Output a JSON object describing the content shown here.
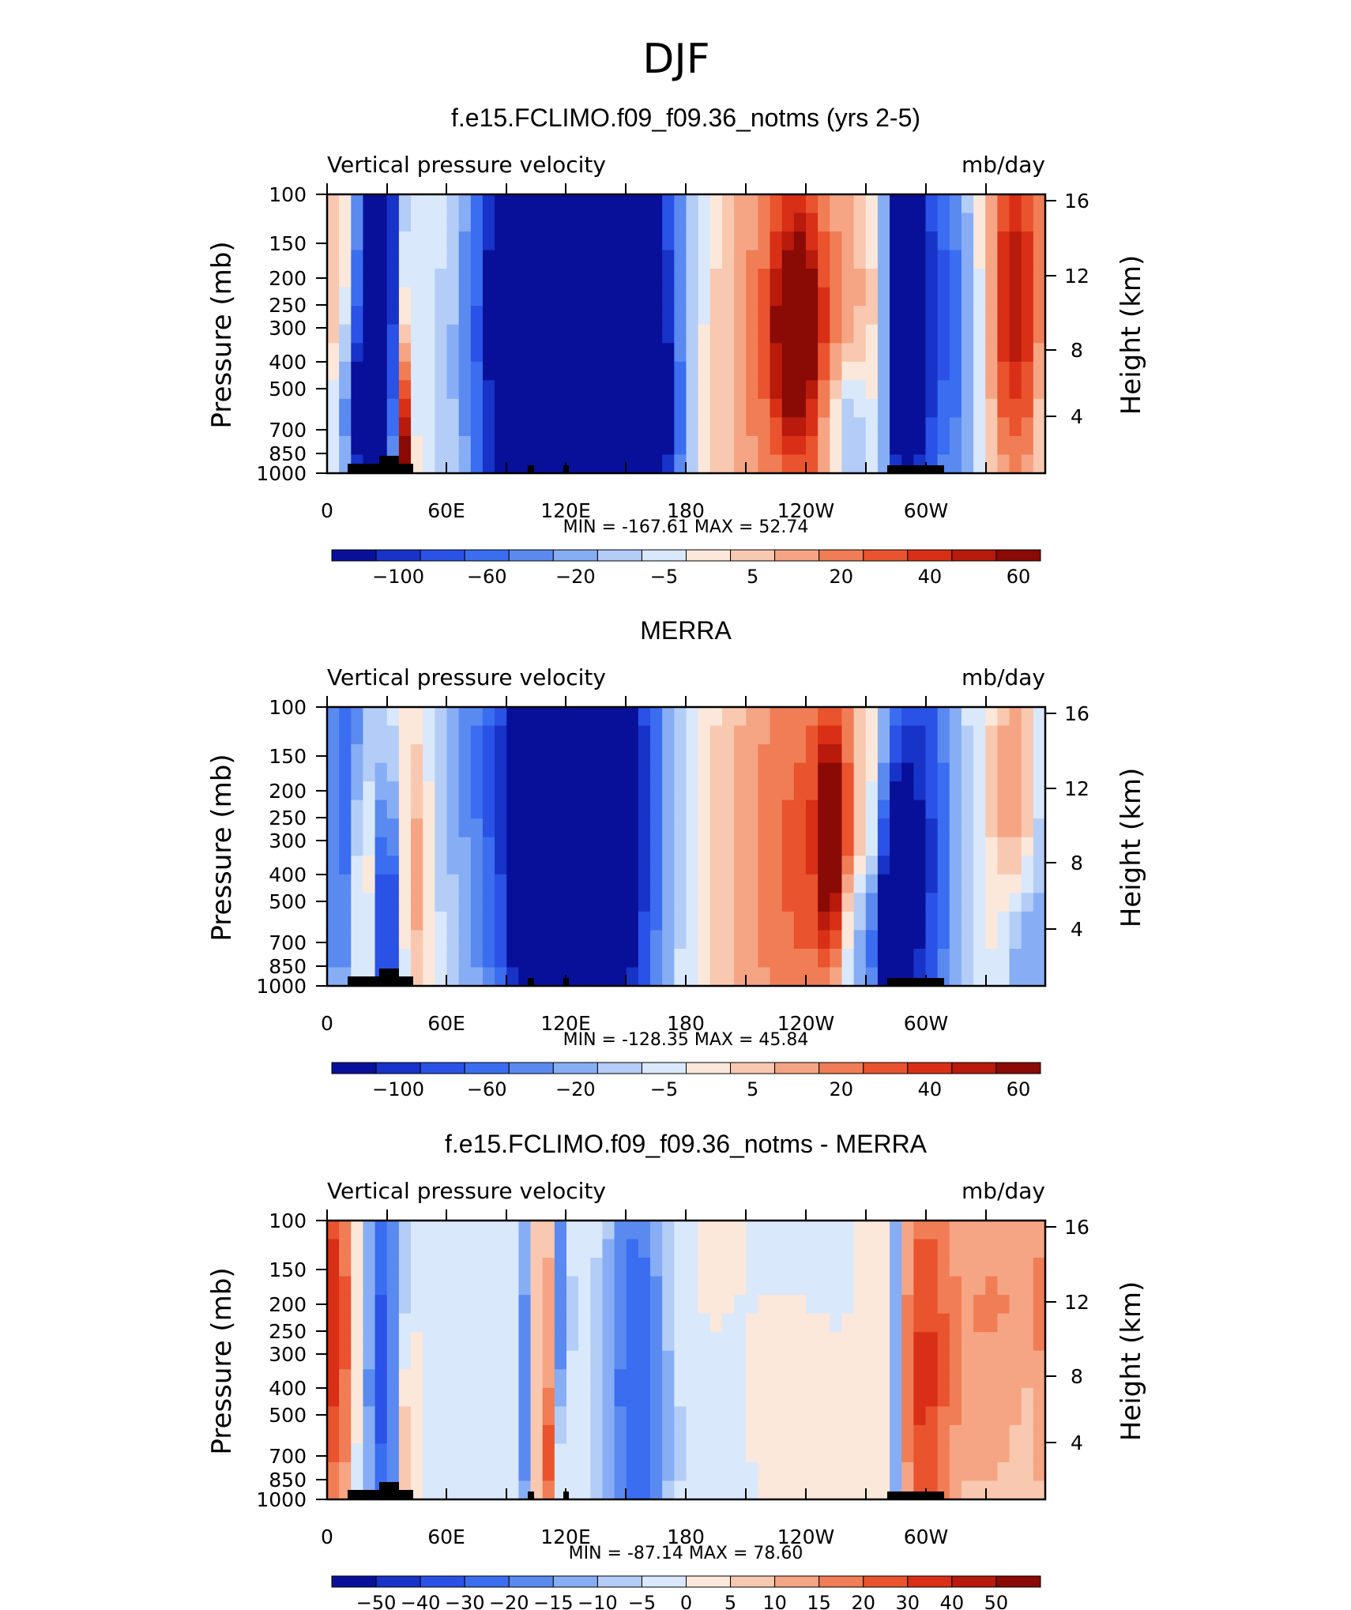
{
  "figure_title": "DJF",
  "chart_data": [
    {
      "type": "heatmap",
      "title": "f.e15.FCLIMO.f09_f09.36_notms (yrs 2-5)",
      "left_label": "Vertical pressure velocity",
      "units": "mb/day",
      "ylabel": "Pressure (mb)",
      "y2label": "Height (km)",
      "x_ticks": [
        "0",
        "60E",
        "120E",
        "180",
        "120W",
        "60W"
      ],
      "y_ticks": [
        "100",
        "150",
        "200",
        "250",
        "300",
        "400",
        "500",
        "700",
        "850",
        "1000"
      ],
      "y2_ticks": [
        "16",
        "12",
        "8",
        "4"
      ],
      "stats": "MIN = -167.61 MAX = 52.74",
      "min": -167.61,
      "max": 52.74,
      "colorbar_labels": [
        "-100",
        "-60",
        "-20",
        "-5",
        "5",
        "20",
        "40",
        "60"
      ],
      "colorbar_colors": [
        "#08109a",
        "#1733c8",
        "#2a52e6",
        "#3a6df0",
        "#5a8af0",
        "#87aef4",
        "#b3cdf7",
        "#dae8fb",
        "#fbe8da",
        "#f9c8b0",
        "#f5a583",
        "#f07d55",
        "#e9532e",
        "#d82f16",
        "#b81a0c",
        "#8a0a06"
      ],
      "features": [
        {
          "lon": 20,
          "lev": 8,
          "w": 5,
          "h": 11,
          "v": -45
        },
        {
          "lon": 29,
          "lev": 9,
          "w": 6,
          "h": 14,
          "v": -60
        },
        {
          "lon": 15,
          "lev": 3,
          "w": 9,
          "h": 3,
          "v": -25
        },
        {
          "lon": 37,
          "lev": 6,
          "w": 3,
          "h": 5,
          "v": 25
        },
        {
          "lon": 38,
          "lev": 1,
          "w": 3,
          "h": 3,
          "v": 55
        },
        {
          "lon": 108,
          "lev": 8,
          "w": 22,
          "h": 15,
          "v": -80
        },
        {
          "lon": 140,
          "lev": 9,
          "w": 20,
          "h": 14,
          "v": -110
        },
        {
          "lon": 122,
          "lev": 12,
          "w": 38,
          "h": 11,
          "v": -20
        },
        {
          "lon": 160,
          "lev": 2,
          "w": 12,
          "h": 4,
          "v": -25
        },
        {
          "lon": 235,
          "lev": 7,
          "w": 32,
          "h": 12,
          "v": 28
        },
        {
          "lon": 235,
          "lev": 8,
          "w": 8,
          "h": 4,
          "v": 45
        },
        {
          "lon": 262,
          "lev": 2,
          "w": 8,
          "h": 3,
          "v": -30
        },
        {
          "lon": 285,
          "lev": 7,
          "w": 5,
          "h": 13,
          "v": -50
        },
        {
          "lon": 296,
          "lev": 7,
          "w": 6,
          "h": 13,
          "v": -45
        },
        {
          "lon": 312,
          "lev": 7,
          "w": 10,
          "h": 9,
          "v": -30
        },
        {
          "lon": 308,
          "lev": 12,
          "w": 25,
          "h": 5,
          "v": -10
        },
        {
          "lon": 345,
          "lev": 8,
          "w": 10,
          "h": 7,
          "v": 40
        },
        {
          "lon": 340,
          "lev": 14,
          "w": 22,
          "h": 5,
          "v": 12
        },
        {
          "lon": 60,
          "lev": 14,
          "w": 25,
          "h": 6,
          "v": 4
        }
      ]
    },
    {
      "type": "heatmap",
      "title": "MERRA",
      "left_label": "Vertical pressure velocity",
      "units": "mb/day",
      "ylabel": "Pressure (mb)",
      "y2label": "Height (km)",
      "x_ticks": [
        "0",
        "60E",
        "120E",
        "180",
        "120W",
        "60W"
      ],
      "y_ticks": [
        "100",
        "150",
        "200",
        "250",
        "300",
        "400",
        "500",
        "700",
        "850",
        "1000"
      ],
      "y2_ticks": [
        "16",
        "12",
        "8",
        "4"
      ],
      "stats": "MIN = -128.35 MAX = 45.84",
      "min": -128.35,
      "max": 45.84,
      "colorbar_labels": [
        "-100",
        "-60",
        "-20",
        "-5",
        "5",
        "20",
        "40",
        "60"
      ],
      "colorbar_colors": [
        "#08109a",
        "#1733c8",
        "#2a52e6",
        "#3a6df0",
        "#5a8af0",
        "#87aef4",
        "#b3cdf7",
        "#dae8fb",
        "#fbe8da",
        "#f9c8b0",
        "#f5a583",
        "#f07d55",
        "#e9532e",
        "#d82f16",
        "#b81a0c",
        "#8a0a06"
      ],
      "features": [
        {
          "lon": 10,
          "lev": 10,
          "w": 9,
          "h": 10,
          "v": -30
        },
        {
          "lon": 18,
          "lev": 6,
          "w": 5,
          "h": 5,
          "v": 25
        },
        {
          "lon": 30,
          "lev": 3,
          "w": 5,
          "h": 5,
          "v": -40
        },
        {
          "lon": 44,
          "lev": 7,
          "w": 6,
          "h": 7,
          "v": 18
        },
        {
          "lon": 110,
          "lev": 8,
          "w": 25,
          "h": 14,
          "v": -40
        },
        {
          "lon": 145,
          "lev": 8,
          "w": 17,
          "h": 13,
          "v": -35
        },
        {
          "lon": 120,
          "lev": 12,
          "w": 38,
          "h": 12,
          "v": -12
        },
        {
          "lon": 103,
          "lev": 6,
          "w": 5,
          "h": 10,
          "v": -50
        },
        {
          "lon": 240,
          "lev": 7,
          "w": 32,
          "h": 12,
          "v": 25
        },
        {
          "lon": 253,
          "lev": 8,
          "w": 5,
          "h": 4,
          "v": 40
        },
        {
          "lon": 295,
          "lev": 7,
          "w": 14,
          "h": 13,
          "v": -45
        },
        {
          "lon": 285,
          "lev": 3,
          "w": 5,
          "h": 5,
          "v": -60
        },
        {
          "lon": 268,
          "lev": 2,
          "w": 10,
          "h": 3,
          "v": -25
        },
        {
          "lon": 345,
          "lev": 9,
          "w": 9,
          "h": 7,
          "v": 20
        },
        {
          "lon": 348,
          "lev": 2,
          "w": 8,
          "h": 4,
          "v": -25
        },
        {
          "lon": 60,
          "lev": 14,
          "w": 25,
          "h": 6,
          "v": -4
        }
      ]
    },
    {
      "type": "heatmap",
      "title": "f.e15.FCLIMO.f09_f09.36_notms - MERRA",
      "left_label": "Vertical pressure velocity",
      "units": "mb/day",
      "ylabel": "Pressure (mb)",
      "y2label": "Height (km)",
      "x_ticks": [
        "0",
        "60E",
        "120E",
        "180",
        "120W",
        "60W"
      ],
      "y_ticks": [
        "100",
        "150",
        "200",
        "250",
        "300",
        "400",
        "500",
        "700",
        "850",
        "1000"
      ],
      "y2_ticks": [
        "16",
        "12",
        "8",
        "4"
      ],
      "stats": "MIN = -87.14 MAX = 78.60",
      "min": -87.14,
      "max": 78.6,
      "colorbar_labels": [
        "-50",
        "-40",
        "-30",
        "-20",
        "-15",
        "-10",
        "-5",
        "0",
        "5",
        "10",
        "15",
        "20",
        "30",
        "40",
        "50"
      ],
      "colorbar_colors": [
        "#08109a",
        "#1733c8",
        "#2a52e6",
        "#3a6df0",
        "#5a8af0",
        "#87aef4",
        "#b3cdf7",
        "#dae8fb",
        "#fbe8da",
        "#f9c8b0",
        "#f5a583",
        "#f07d55",
        "#e9532e",
        "#d82f16",
        "#b81a0c",
        "#8a0a06"
      ],
      "features": [
        {
          "lon": 5,
          "lev": 9,
          "w": 5,
          "h": 9,
          "v": 45
        },
        {
          "lon": 28,
          "lev": 7,
          "w": 7,
          "h": 11,
          "v": -55
        },
        {
          "lon": 40,
          "lev": 3,
          "w": 4,
          "h": 4,
          "v": 30
        },
        {
          "lon": 60,
          "lev": 8,
          "w": 8,
          "h": 10,
          "v": -10
        },
        {
          "lon": 100,
          "lev": 6,
          "w": 3,
          "h": 12,
          "v": -35
        },
        {
          "lon": 108,
          "lev": 7,
          "w": 3,
          "h": 12,
          "v": 40
        },
        {
          "lon": 118,
          "lev": 7,
          "w": 3,
          "h": 12,
          "v": -40
        },
        {
          "lon": 115,
          "lev": 2,
          "w": 5,
          "h": 3,
          "v": 30
        },
        {
          "lon": 155,
          "lev": 7,
          "w": 12,
          "h": 12,
          "v": -50
        },
        {
          "lon": 210,
          "lev": 9,
          "w": 30,
          "h": 14,
          "v": -4
        },
        {
          "lon": 230,
          "lev": 4,
          "w": 14,
          "h": 4,
          "v": 8
        },
        {
          "lon": 285,
          "lev": 7,
          "w": 3,
          "h": 12,
          "v": -50
        },
        {
          "lon": 298,
          "lev": 6,
          "w": 10,
          "h": 12,
          "v": 40
        },
        {
          "lon": 330,
          "lev": 7,
          "w": 25,
          "h": 8,
          "v": 25
        },
        {
          "lon": 340,
          "lev": 13,
          "w": 20,
          "h": 4,
          "v": 10
        },
        {
          "lon": 185,
          "lev": 13,
          "w": 30,
          "h": 5,
          "v": 5
        }
      ]
    }
  ]
}
